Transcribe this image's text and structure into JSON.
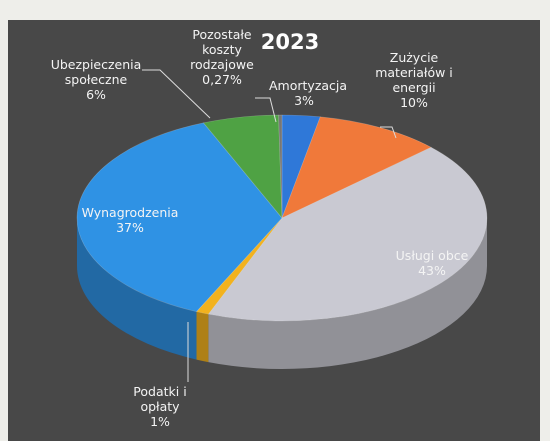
{
  "chart_data": {
    "type": "pie3d",
    "title": "2023",
    "categories": [
      "Amortyzacja",
      "Zużycie materiałów i energii",
      "Usługi obce",
      "Podatki i opłaty",
      "Wynagrodzenia",
      "Ubezpieczenia społeczne",
      "Pozostałe koszty rodzajowe"
    ],
    "values": [
      3,
      10,
      43,
      1,
      37,
      6,
      0.27
    ],
    "value_labels": [
      "3%",
      "10%",
      "43%",
      "1%",
      "37%",
      "6%",
      "0,27%"
    ],
    "colors": [
      "#2f78d8",
      "#f0793a",
      "#c9c9d2",
      "#f2b21e",
      "#2f92e4",
      "#4fa244",
      "#777777"
    ]
  }
}
